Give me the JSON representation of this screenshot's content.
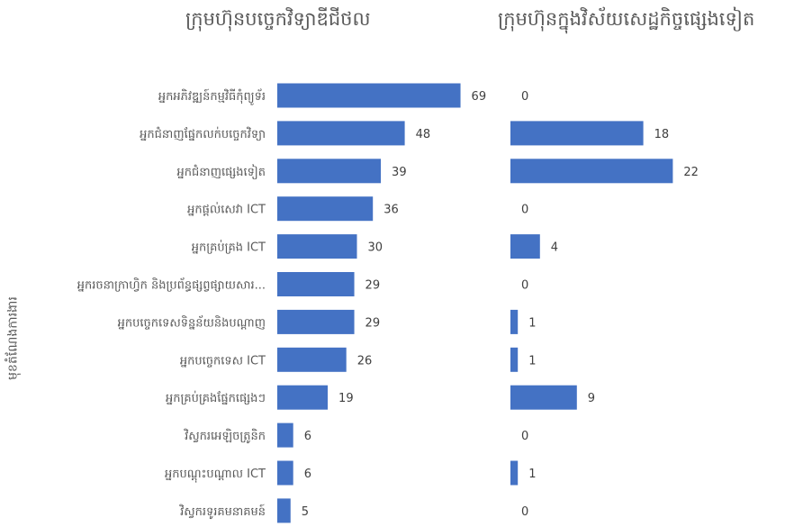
{
  "chart_data": {
    "type": "bar",
    "orientation": "horizontal",
    "categories": [
      "អ្នកអភិវឌ្ឍន៍កម្មវិធីកុំព្យូទ័រ",
      "អ្នកជំនាញផ្នែកលក់បច្ចេកវិទ្យា",
      "អ្នកជំនាញផ្សេងទៀត",
      "អ្នកផ្តល់សេវា ICT",
      "អ្នកគ្រប់គ្រង ICT",
      "អ្នករចនាក្រាហ្វិក និងប្រព័ន្ធផ្សព្វផ្សាយសារ...",
      "អ្នកបច្ចេកទេសទិន្នន័យនិងបណ្តាញ",
      "អ្នកបច្ចេកទេស ICT",
      "អ្នកគ្រប់គ្រងផ្នែកផ្សេងៗ",
      "វិស្វករអេឡិចត្រូនិក",
      "អ្នកបណ្តុះបណ្តាល ICT",
      "វិស្វករទូរគមនាគមន៍"
    ],
    "ylabel": "មុខតំណែងការងារ",
    "series": [
      {
        "name": "ក្រុមហ៊ុនបច្ចេកវិទ្យាឌីជីថល",
        "values": [
          69,
          48,
          39,
          36,
          30,
          29,
          29,
          26,
          19,
          6,
          6,
          5
        ]
      },
      {
        "name": "ក្រុមហ៊ុនក្នុងវិស័យសេដ្ឋកិច្ចផ្សេងទៀត",
        "values": [
          0,
          18,
          22,
          0,
          4,
          0,
          1,
          1,
          9,
          0,
          1,
          0
        ]
      }
    ],
    "bar_color": "#4472C4",
    "grid": false,
    "legend": "none"
  }
}
